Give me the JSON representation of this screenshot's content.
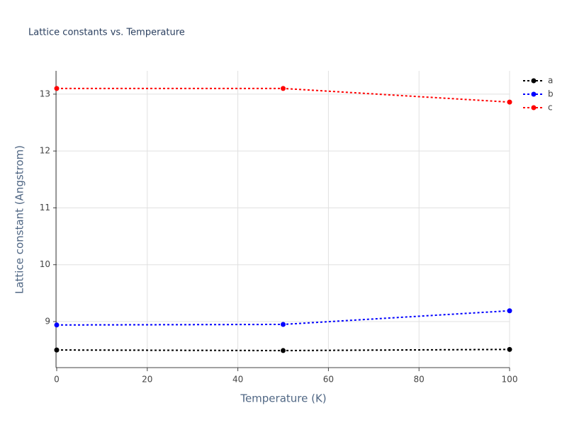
{
  "chart_data": {
    "type": "line",
    "title": "Lattice constants vs. Temperature",
    "x_label": "Temperature (K)",
    "y_label": "Lattice constant (Angstrom)",
    "x": [
      0,
      50,
      100
    ],
    "series": [
      {
        "name": "a",
        "color": "#000000",
        "values": [
          8.5,
          8.49,
          8.51
        ]
      },
      {
        "name": "b",
        "color": "#0000ff",
        "values": [
          8.94,
          8.95,
          9.19
        ]
      },
      {
        "name": "c",
        "color": "#ff0000",
        "values": [
          13.1,
          13.1,
          12.86
        ]
      }
    ],
    "xlim": [
      0,
      100
    ],
    "xticks": [
      0,
      20,
      40,
      60,
      80,
      100
    ],
    "ylim": [
      8.19,
      13.41
    ],
    "yticks": [
      9,
      10,
      11,
      12,
      13
    ],
    "grid": true,
    "legend": "top-right",
    "line_style": "dotted"
  }
}
